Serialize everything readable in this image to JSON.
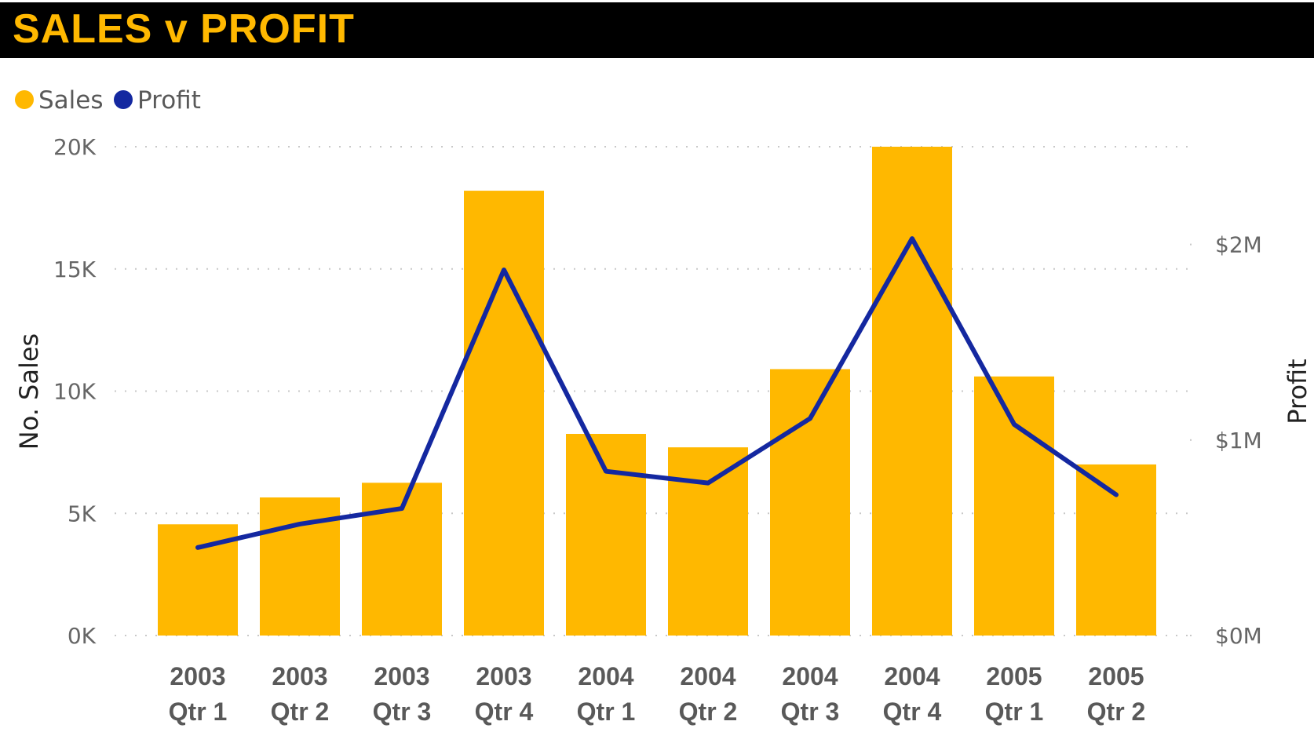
{
  "title": "SALES v PROFIT",
  "colors": {
    "title_bg": "#000000",
    "title_text": "#FFB800",
    "sales": "#FFB800",
    "profit": "#1428A0"
  },
  "chart_data": {
    "type": "bar",
    "title": "SALES v PROFIT",
    "categories": [
      [
        "2003",
        "Qtr 1"
      ],
      [
        "2003",
        "Qtr 2"
      ],
      [
        "2003",
        "Qtr 3"
      ],
      [
        "2003",
        "Qtr 4"
      ],
      [
        "2004",
        "Qtr 1"
      ],
      [
        "2004",
        "Qtr 2"
      ],
      [
        "2004",
        "Qtr 3"
      ],
      [
        "2004",
        "Qtr 4"
      ],
      [
        "2005",
        "Qtr 1"
      ],
      [
        "2005",
        "Qtr 2"
      ]
    ],
    "series": [
      {
        "name": "Sales",
        "type": "bar",
        "axis": "left",
        "values": [
          4550,
          5650,
          6250,
          18200,
          8250,
          7700,
          10900,
          20000,
          10600,
          7000
        ]
      },
      {
        "name": "Profit",
        "type": "line",
        "axis": "right",
        "values": [
          450000,
          570000,
          650000,
          1870000,
          840000,
          780000,
          1110000,
          2030000,
          1080000,
          720000
        ]
      }
    ],
    "y_left": {
      "label": "No. Sales",
      "range": [
        0,
        20000
      ],
      "ticks": [
        0,
        5000,
        10000,
        15000,
        20000
      ],
      "tick_labels": [
        "0K",
        "5K",
        "10K",
        "15K",
        "20K"
      ]
    },
    "y_right": {
      "label": "Profit",
      "range": [
        0,
        2500000
      ],
      "ticks": [
        0,
        1000000,
        2000000
      ],
      "tick_labels": [
        "$0M",
        "$1M",
        "$2M"
      ]
    },
    "legend_position": "top-left",
    "grid": true
  }
}
